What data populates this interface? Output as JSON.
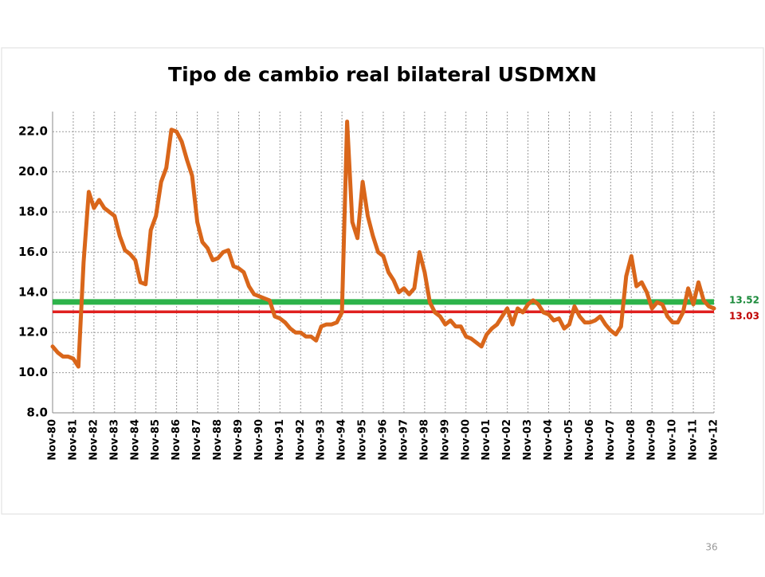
{
  "chart_data": {
    "type": "line",
    "title": "Tipo de cambio real bilateral USDMXN",
    "categories": [
      "Nov-80",
      null,
      null,
      null,
      "Nov-81",
      null,
      null,
      null,
      "Nov-82",
      null,
      null,
      null,
      "Nov-83",
      null,
      null,
      null,
      "Nov-84",
      null,
      null,
      null,
      "Nov-85",
      null,
      null,
      null,
      "Nov-86",
      null,
      null,
      null,
      "Nov-87",
      null,
      null,
      null,
      "Nov-88",
      null,
      null,
      null,
      "Nov-89",
      null,
      null,
      null,
      "Nov-90",
      null,
      null,
      null,
      "Nov-91",
      null,
      null,
      null,
      "Nov-92",
      null,
      null,
      null,
      "Nov-93",
      null,
      null,
      null,
      "Nov-94",
      null,
      null,
      null,
      "Nov-95",
      null,
      null,
      null,
      "Nov-96",
      null,
      null,
      null,
      "Nov-97",
      null,
      null,
      null,
      "Nov-98",
      null,
      null,
      null,
      "Nov-99",
      null,
      null,
      null,
      "Nov-00",
      null,
      null,
      null,
      "Nov-01",
      null,
      null,
      null,
      "Nov-02",
      null,
      null,
      null,
      "Nov-03",
      null,
      null,
      null,
      "Nov-04",
      null,
      null,
      null,
      "Nov-05",
      null,
      null,
      null,
      "Nov-06",
      null,
      null,
      null,
      "Nov-07",
      null,
      null,
      null,
      "Nov-08",
      null,
      null,
      null,
      "Nov-09",
      null,
      null,
      null,
      "Nov-10",
      null,
      null,
      null,
      "Nov-11",
      null,
      null,
      null,
      "Nov-12"
    ],
    "series": [
      {
        "color": "#d9661a",
        "values": [
          11.3,
          11.0,
          10.8,
          10.8,
          10.7,
          10.3,
          15.5,
          19.0,
          18.2,
          18.6,
          18.2,
          18.0,
          17.8,
          16.8,
          16.1,
          15.9,
          15.6,
          14.5,
          14.4,
          17.1,
          17.8,
          19.5,
          20.2,
          22.1,
          22.0,
          21.5,
          20.6,
          19.8,
          17.5,
          16.5,
          16.2,
          15.6,
          15.7,
          16.0,
          16.1,
          15.3,
          15.2,
          15.0,
          14.3,
          13.9,
          13.8,
          13.7,
          13.6,
          12.8,
          12.7,
          12.5,
          12.2,
          12.0,
          12.0,
          11.8,
          11.8,
          11.6,
          12.3,
          12.4,
          12.4,
          12.5,
          13.0,
          22.5,
          17.5,
          16.7,
          19.5,
          17.8,
          16.8,
          16.0,
          15.8,
          15.0,
          14.6,
          14.0,
          14.2,
          13.9,
          14.2,
          16.0,
          15.0,
          13.5,
          13.0,
          12.8,
          12.4,
          12.6,
          12.3,
          12.3,
          11.8,
          11.7,
          11.5,
          11.3,
          11.9,
          12.2,
          12.4,
          12.8,
          13.2,
          12.4,
          13.2,
          13.0,
          13.4,
          13.6,
          13.4,
          13.0,
          12.9,
          12.6,
          12.7,
          12.2,
          12.4,
          13.3,
          12.8,
          12.5,
          12.5,
          12.6,
          12.8,
          12.4,
          12.1,
          11.9,
          12.3,
          14.8,
          15.8,
          14.3,
          14.5,
          14.0,
          13.2,
          13.5,
          13.4,
          12.8,
          12.5,
          12.5,
          13.0,
          14.2,
          13.4,
          14.5,
          13.6,
          13.3,
          13.2
        ]
      }
    ],
    "reference_lines": [
      {
        "value": 13.52,
        "color": "#2db34a"
      },
      {
        "value": 13.03,
        "color": "#e0201f"
      }
    ],
    "ylim": [
      8,
      23
    ],
    "yticks": [
      8.0,
      10.0,
      12.0,
      14.0,
      16.0,
      18.0,
      20.0,
      22.0
    ],
    "ytick_labels": [
      "8.0",
      "10.0",
      "12.0",
      "14.0",
      "16.0",
      "18.0",
      "20.0",
      "22.0"
    ],
    "grid": true
  },
  "page_number": "36"
}
